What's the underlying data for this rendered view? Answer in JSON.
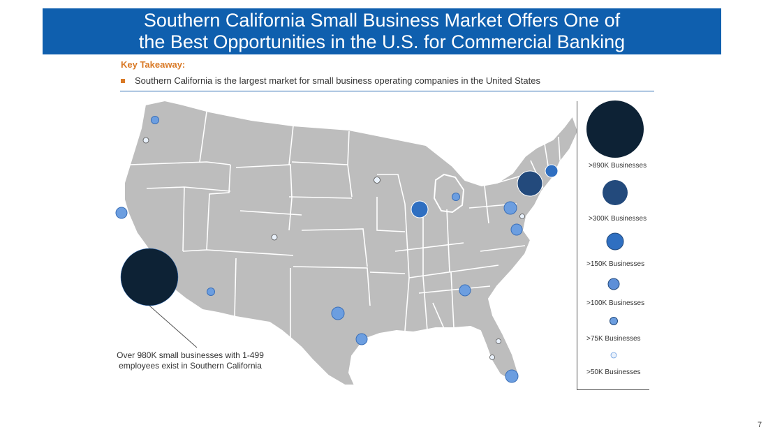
{
  "header": {
    "title_line1": "Southern California Small Business Market Offers One of",
    "title_line2": "the Best Opportunities in the U.S. for Commercial Banking"
  },
  "key_takeaway": {
    "label": "Key Takeaway:",
    "bullet": "Southern California is the largest market for small  business operating companies in the United States"
  },
  "callout": {
    "line1": "Over 980K small businesses with 1-499",
    "line2": "employees exist in Southern California"
  },
  "legend": {
    "items": [
      {
        "label": ">890K Businesses",
        "color": "#0d2235"
      },
      {
        "label": ">300K Businesses",
        "color": "#234a7c"
      },
      {
        "label": ">150K Businesses",
        "color": "#2f6fc1"
      },
      {
        "label": ">100K Businesses",
        "color": "#5d8fd8"
      },
      {
        "label": ">75K Businesses",
        "color": "#6c9ee0"
      },
      {
        "label": ">50K Businesses",
        "color": "#e9f1fb"
      }
    ]
  },
  "colors": {
    "title_bar": "#0f5fae",
    "accent": "#d97a27",
    "land": "#bdbdbd",
    "borders": "#ffffff"
  },
  "page_number": "7"
}
